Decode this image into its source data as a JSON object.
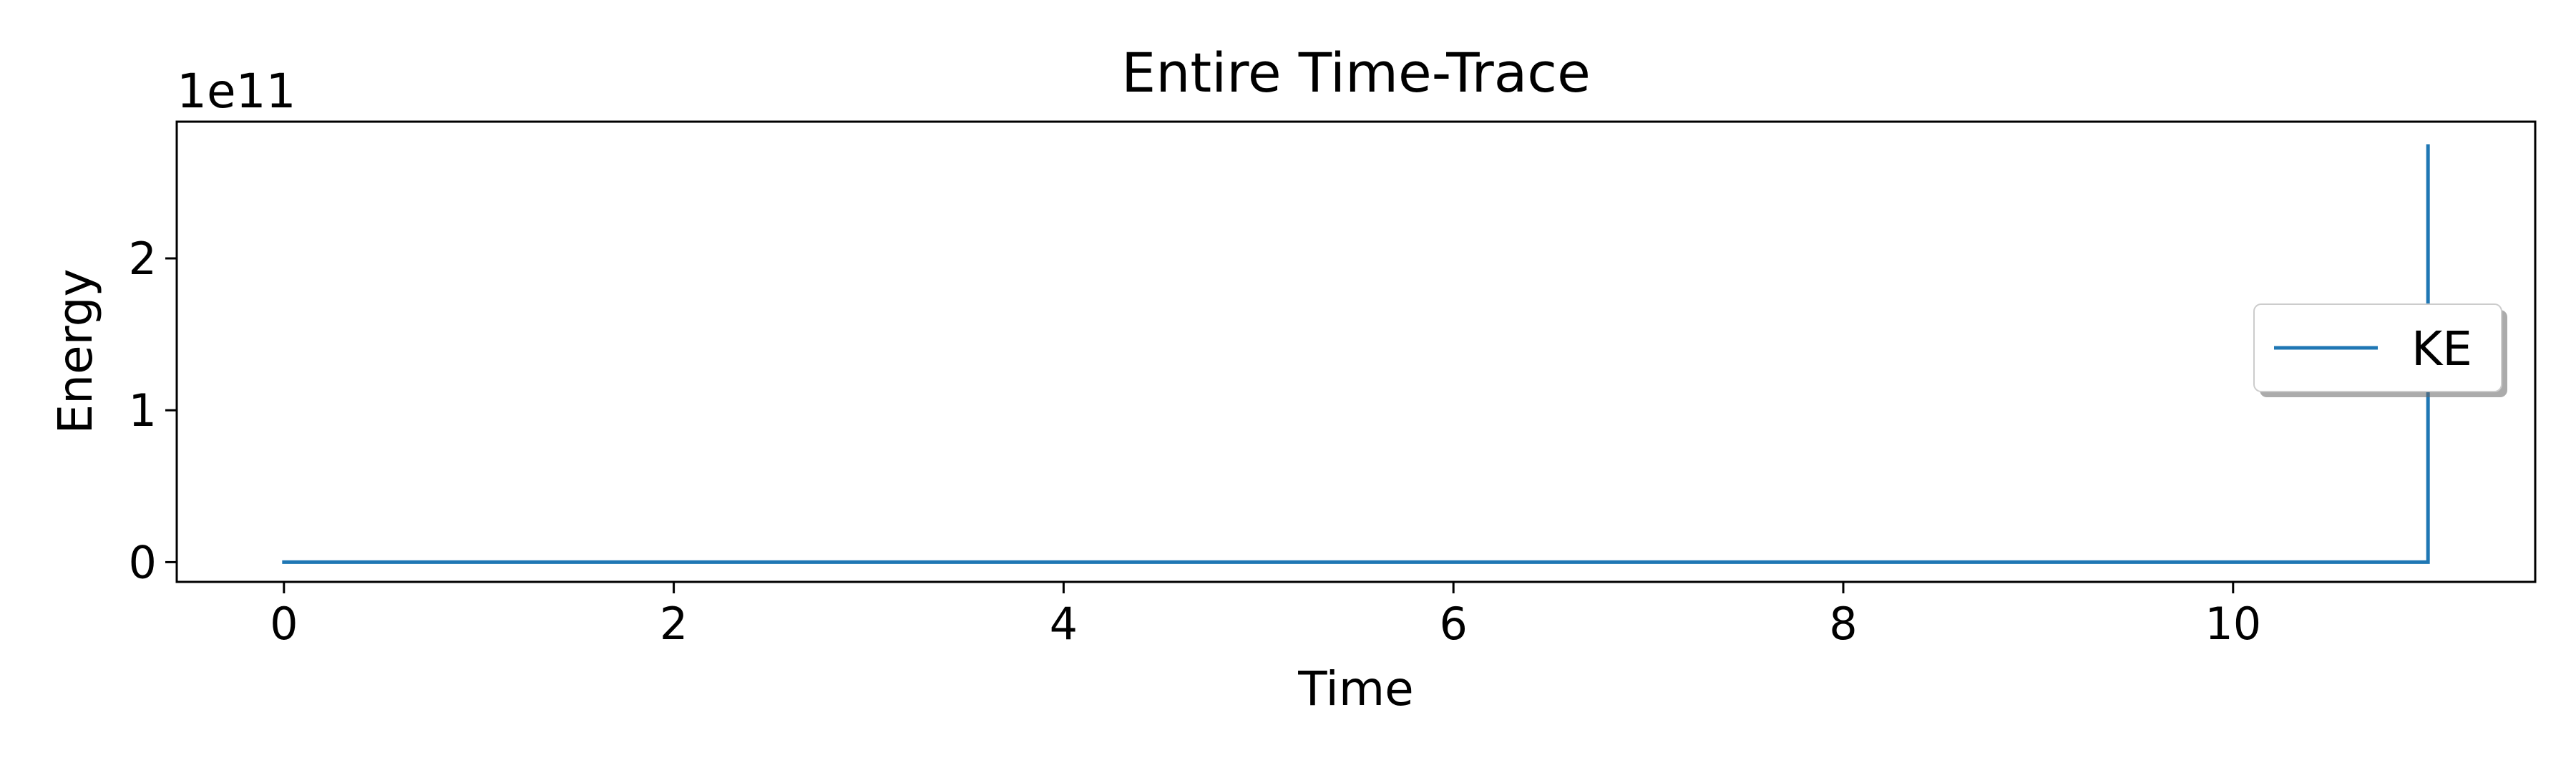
{
  "chart_data": {
    "type": "line",
    "title": "Entire Time-Trace",
    "xlabel": "Time",
    "ylabel": "Energy",
    "y_offset_text": "1e11",
    "y_scale_multiplier": 100000000000,
    "xlim": [
      -0.55,
      11.55
    ],
    "ylim": [
      -0.13,
      2.9
    ],
    "x_ticks": [
      0,
      2,
      4,
      6,
      8,
      10
    ],
    "x_tick_labels": [
      "0",
      "2",
      "4",
      "6",
      "8",
      "10"
    ],
    "y_ticks": [
      0,
      1,
      2
    ],
    "y_tick_labels": [
      "0",
      "1",
      "2"
    ],
    "grid": false,
    "legend_position": "center-right",
    "series": [
      {
        "name": "KE",
        "color": "#1f77b4",
        "x": [
          0,
          1,
          2,
          3,
          4,
          5,
          6,
          7,
          8,
          9,
          10,
          11.0,
          11.0
        ],
        "y": [
          0,
          0,
          0,
          0,
          0,
          0,
          0,
          0,
          0,
          0,
          0,
          0,
          2.74
        ]
      }
    ]
  }
}
